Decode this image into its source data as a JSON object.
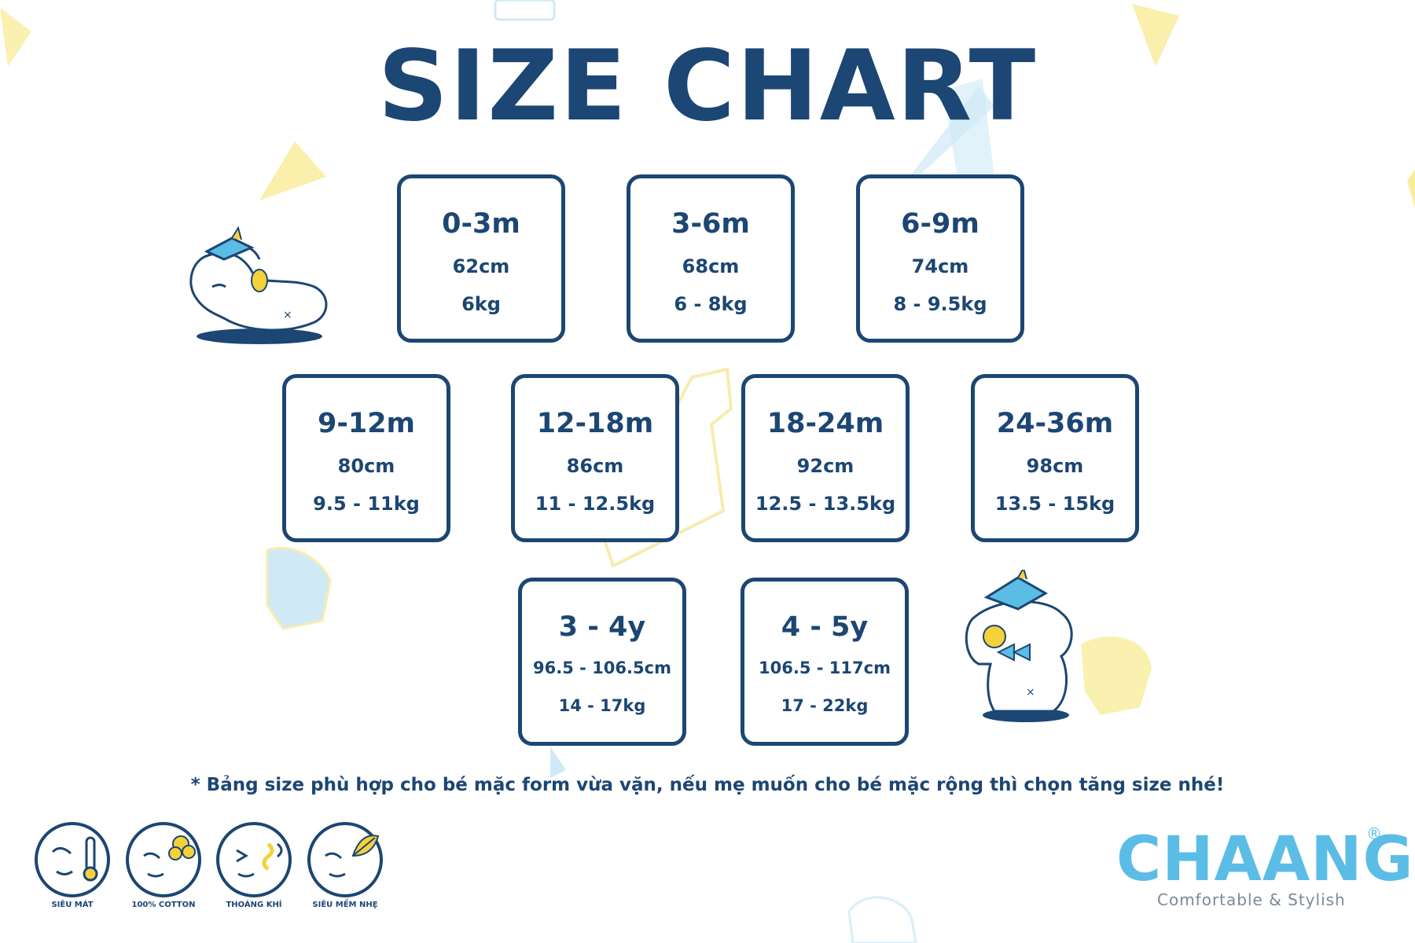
{
  "title": "SIZE CHART",
  "sizes": [
    {
      "age": "0-3m",
      "height": "62cm",
      "weight": "6kg"
    },
    {
      "age": "3-6m",
      "height": "68cm",
      "weight": "6 - 8kg"
    },
    {
      "age": "6-9m",
      "height": "74cm",
      "weight": "8 - 9.5kg"
    },
    {
      "age": "9-12m",
      "height": "80cm",
      "weight": "9.5 - 11kg"
    },
    {
      "age": "12-18m",
      "height": "86cm",
      "weight": "11 - 12.5kg"
    },
    {
      "age": "18-24m",
      "height": "92cm",
      "weight": "12.5 - 13.5kg"
    },
    {
      "age": "24-36m",
      "height": "98cm",
      "weight": "13.5 - 15kg"
    },
    {
      "age": "3 - 4y",
      "height": "96.5 - 106.5cm",
      "weight": "14 - 17kg"
    },
    {
      "age": "4 - 5y",
      "height": "106.5 - 117cm",
      "weight": "17 - 22kg"
    }
  ],
  "note": "* Bảng size phù hợp cho bé mặc form vừa vặn, nếu mẹ muốn cho bé mặc rộng thì chọn tăng size nhé!",
  "features": [
    {
      "label": "SIÊU MÁT",
      "icon": "thermometer-icon"
    },
    {
      "label": "100% COTTON",
      "icon": "cotton-icon"
    },
    {
      "label": "THOÁNG KHÍ",
      "icon": "breathable-icon"
    },
    {
      "label": "SIÊU MỀM NHẸ",
      "icon": "feather-icon"
    }
  ],
  "brand": {
    "name": "CHAANG",
    "mark": "®",
    "tagline": "Comfortable & Stylish"
  },
  "colors": {
    "navy": "#1c4673",
    "light_blue": "#5bbde6",
    "yellow": "#f7e27a",
    "pale_blue": "#cfeaf6"
  }
}
